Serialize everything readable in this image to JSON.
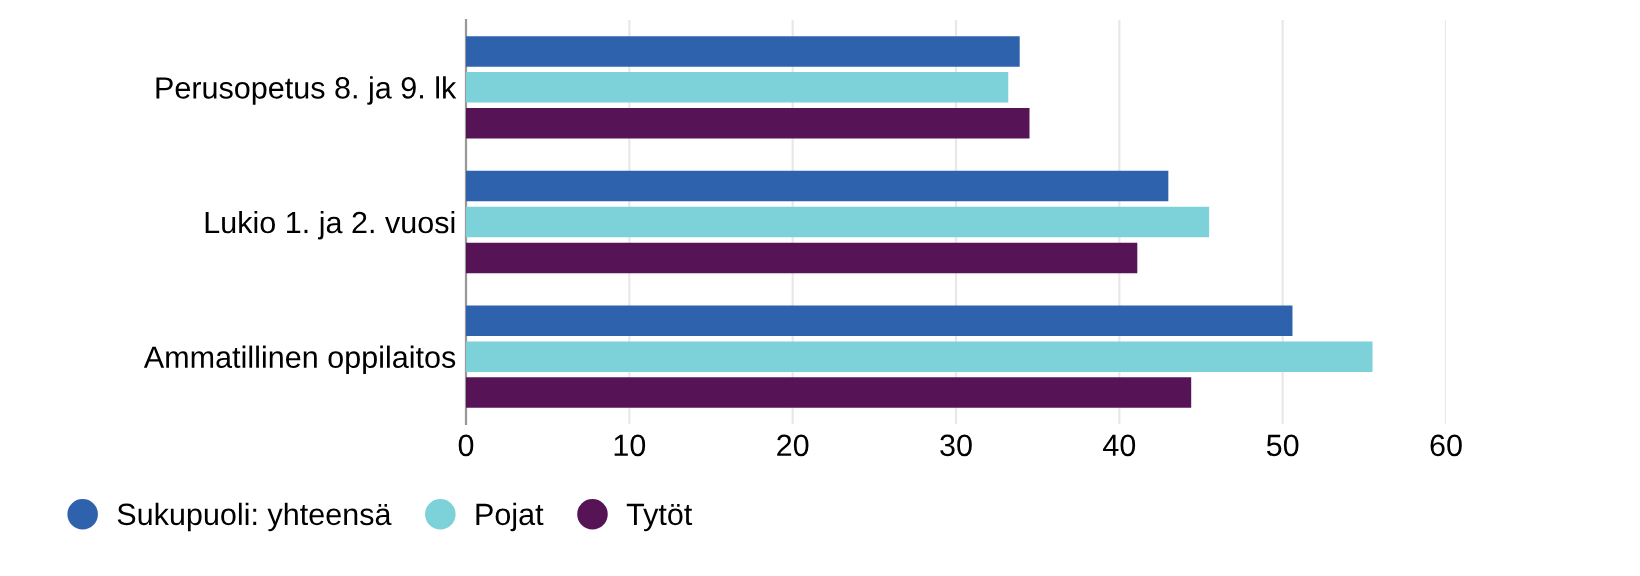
{
  "chart_data": {
    "type": "bar",
    "orientation": "horizontal",
    "categories": [
      "Perusopetus 8. ja 9. lk",
      "Lukio 1. ja 2. vuosi",
      "Ammatillinen oppilaitos"
    ],
    "series": [
      {
        "name": "Sukupuoli: yhteensä",
        "color": "#2e62ad",
        "values": [
          33.9,
          43.0,
          50.6
        ]
      },
      {
        "name": "Pojat",
        "color": "#7dd1d8",
        "values": [
          33.2,
          45.5,
          55.5
        ]
      },
      {
        "name": "Tytöt",
        "color": "#561356",
        "values": [
          34.5,
          41.1,
          44.4
        ]
      }
    ],
    "xlim": [
      0,
      60
    ],
    "xticks": [
      0,
      10,
      20,
      30,
      40,
      50,
      60
    ],
    "grid": "x",
    "legend": "bottom left"
  }
}
